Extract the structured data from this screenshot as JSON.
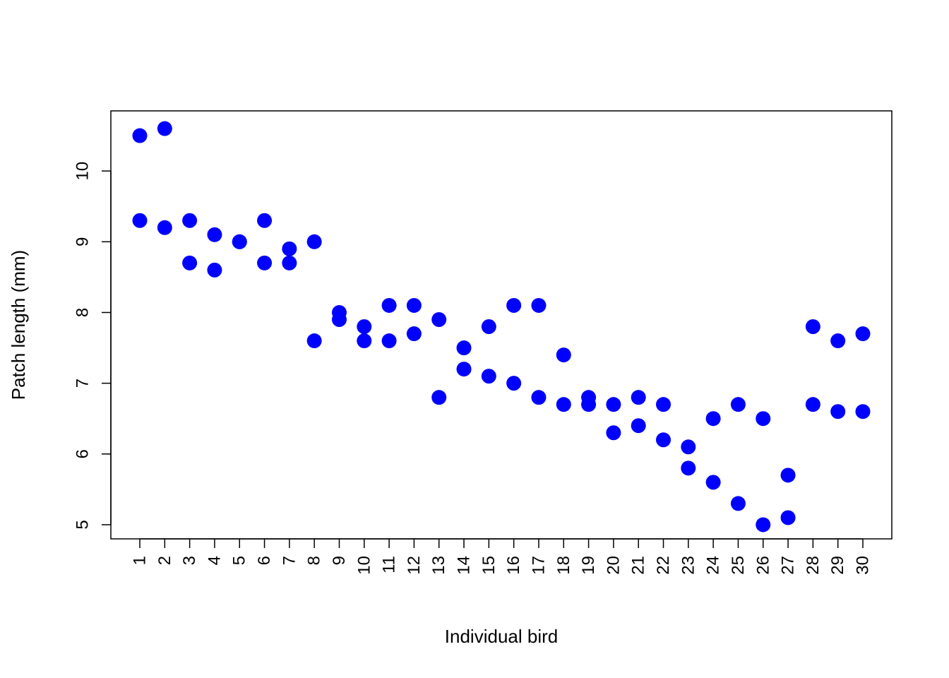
{
  "chart_data": {
    "type": "scatter",
    "title": "",
    "xlabel": "Individual bird",
    "ylabel": "Patch length (mm)",
    "x_categories": [
      "1",
      "2",
      "3",
      "4",
      "5",
      "6",
      "7",
      "8",
      "9",
      "10",
      "11",
      "12",
      "13",
      "14",
      "15",
      "16",
      "17",
      "18",
      "19",
      "20",
      "21",
      "22",
      "23",
      "24",
      "25",
      "26",
      "27",
      "28",
      "29",
      "30"
    ],
    "y_ticks": [
      5,
      6,
      7,
      8,
      9,
      10
    ],
    "ylim": [
      4.8,
      10.85
    ],
    "point_color": "#0000ff",
    "grid": false,
    "points": [
      {
        "x": 1,
        "y": 10.5
      },
      {
        "x": 1,
        "y": 9.3
      },
      {
        "x": 2,
        "y": 10.6
      },
      {
        "x": 2,
        "y": 9.2
      },
      {
        "x": 3,
        "y": 9.3
      },
      {
        "x": 3,
        "y": 8.7
      },
      {
        "x": 4,
        "y": 9.1
      },
      {
        "x": 4,
        "y": 8.6
      },
      {
        "x": 5,
        "y": 9.0
      },
      {
        "x": 5,
        "y": 9.0
      },
      {
        "x": 6,
        "y": 9.3
      },
      {
        "x": 6,
        "y": 8.7
      },
      {
        "x": 7,
        "y": 8.9
      },
      {
        "x": 7,
        "y": 8.7
      },
      {
        "x": 8,
        "y": 9.0
      },
      {
        "x": 8,
        "y": 7.6
      },
      {
        "x": 9,
        "y": 8.0
      },
      {
        "x": 9,
        "y": 7.9
      },
      {
        "x": 10,
        "y": 7.8
      },
      {
        "x": 10,
        "y": 7.6
      },
      {
        "x": 11,
        "y": 8.1
      },
      {
        "x": 11,
        "y": 7.6
      },
      {
        "x": 12,
        "y": 8.1
      },
      {
        "x": 12,
        "y": 7.7
      },
      {
        "x": 13,
        "y": 7.9
      },
      {
        "x": 13,
        "y": 6.8
      },
      {
        "x": 14,
        "y": 7.5
      },
      {
        "x": 14,
        "y": 7.2
      },
      {
        "x": 15,
        "y": 7.8
      },
      {
        "x": 15,
        "y": 7.1
      },
      {
        "x": 16,
        "y": 8.1
      },
      {
        "x": 16,
        "y": 7.0
      },
      {
        "x": 17,
        "y": 8.1
      },
      {
        "x": 17,
        "y": 6.8
      },
      {
        "x": 18,
        "y": 7.4
      },
      {
        "x": 18,
        "y": 6.7
      },
      {
        "x": 19,
        "y": 6.8
      },
      {
        "x": 19,
        "y": 6.7
      },
      {
        "x": 20,
        "y": 6.7
      },
      {
        "x": 20,
        "y": 6.3
      },
      {
        "x": 21,
        "y": 6.8
      },
      {
        "x": 21,
        "y": 6.4
      },
      {
        "x": 22,
        "y": 6.7
      },
      {
        "x": 22,
        "y": 6.2
      },
      {
        "x": 23,
        "y": 6.1
      },
      {
        "x": 23,
        "y": 5.8
      },
      {
        "x": 24,
        "y": 6.5
      },
      {
        "x": 24,
        "y": 5.6
      },
      {
        "x": 25,
        "y": 6.7
      },
      {
        "x": 25,
        "y": 5.3
      },
      {
        "x": 26,
        "y": 6.5
      },
      {
        "x": 26,
        "y": 5.0
      },
      {
        "x": 27,
        "y": 5.7
      },
      {
        "x": 27,
        "y": 5.1
      },
      {
        "x": 28,
        "y": 7.8
      },
      {
        "x": 28,
        "y": 6.7
      },
      {
        "x": 29,
        "y": 7.6
      },
      {
        "x": 29,
        "y": 6.6
      },
      {
        "x": 30,
        "y": 7.7
      },
      {
        "x": 30,
        "y": 6.6
      }
    ]
  }
}
